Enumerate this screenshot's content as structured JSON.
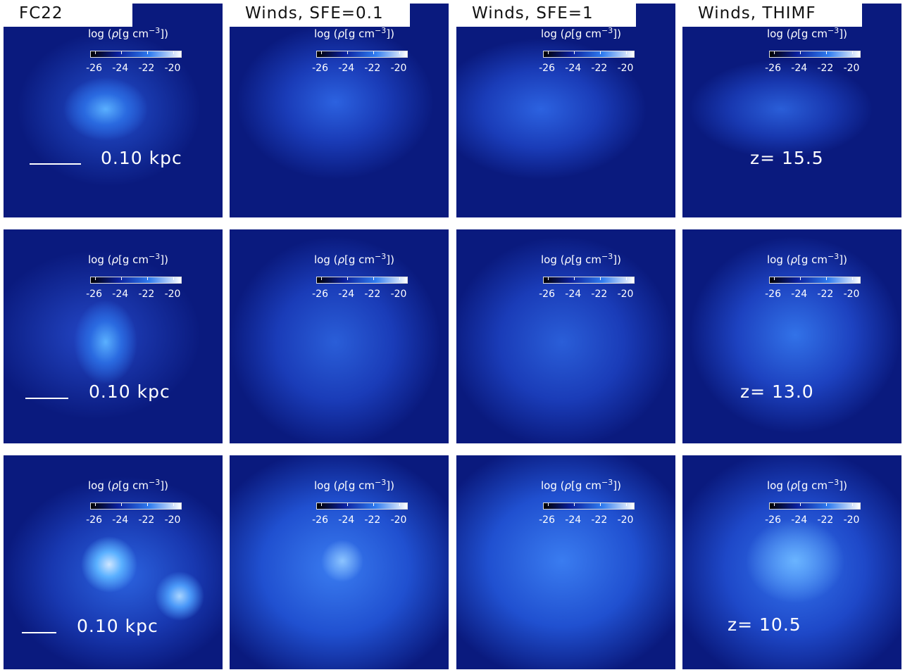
{
  "columns": [
    "FC22",
    "Winds, SFE=0.1",
    "Winds, SFE=1",
    "Winds, THIMF"
  ],
  "colorbar": {
    "label": {
      "prefix": "log (",
      "symbol": "ρ",
      "unit": "[g cm",
      "exponent": "−3",
      "suffix": "])"
    },
    "range": [
      -26.3,
      -19.3
    ],
    "ticks": [
      -26,
      -24,
      -22,
      -20
    ]
  },
  "rows": [
    {
      "scale": "0.10 kpc",
      "redshift": "z= 15.5"
    },
    {
      "scale": "0.10 kpc",
      "redshift": "z= 13.0"
    },
    {
      "scale": "0.10 kpc",
      "redshift": "z= 10.5"
    }
  ]
}
